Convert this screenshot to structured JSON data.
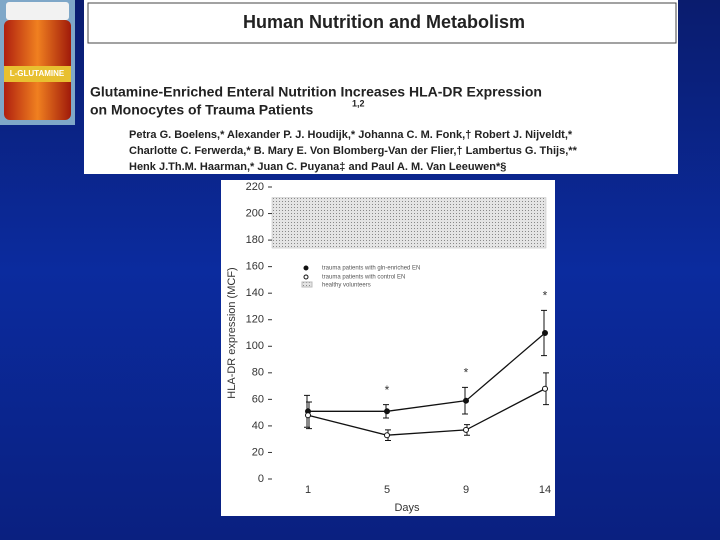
{
  "product_label": "L-GLUTAMINE",
  "journal": "Human Nutrition and Metabolism",
  "article": {
    "title_lines": [
      "Glutamine-Enriched Enteral Nutrition Increases HLA-DR Expression",
      "on Monocytes of Trauma Patients"
    ],
    "title_sup": "1,2",
    "authors": [
      "Petra G. Boelens,* Alexander P. J. Houdijk,* Johanna C. M. Fonk,† Robert J. Nijveldt,*",
      "Charlotte C. Ferwerda,* B. Mary E. Von Blomberg-Van der Flier,† Lambertus G. Thijs,**",
      "Henk J.Th.M. Haarman,* Juan C. Puyana‡ and Paul A. M. Van Leeuwen*§"
    ]
  },
  "chart_data": {
    "type": "line",
    "x_label": "Days",
    "y_label": "HLA-DR expression (MCF)",
    "categories": [
      "1",
      "5",
      "9",
      "14"
    ],
    "ylim": [
      0,
      220
    ],
    "yticks": [
      0,
      20,
      40,
      60,
      80,
      100,
      120,
      140,
      160,
      180,
      200,
      220
    ],
    "series": [
      {
        "name": "trauma patients with gln-enriched EN",
        "color": "#111111",
        "marker": "filled",
        "values": [
          51,
          51,
          59,
          110
        ],
        "errors": [
          12,
          5,
          10,
          17
        ]
      },
      {
        "name": "trauma patients with control EN",
        "color": "#111111",
        "marker": "open",
        "values": [
          48,
          33,
          37,
          68
        ],
        "errors": [
          10,
          4,
          4,
          12
        ]
      }
    ],
    "band": {
      "name": "healthy volunteers",
      "low": 174,
      "high": 212,
      "color": "#bbbbbb"
    },
    "significance": [
      null,
      "*",
      "*",
      "*"
    ]
  }
}
